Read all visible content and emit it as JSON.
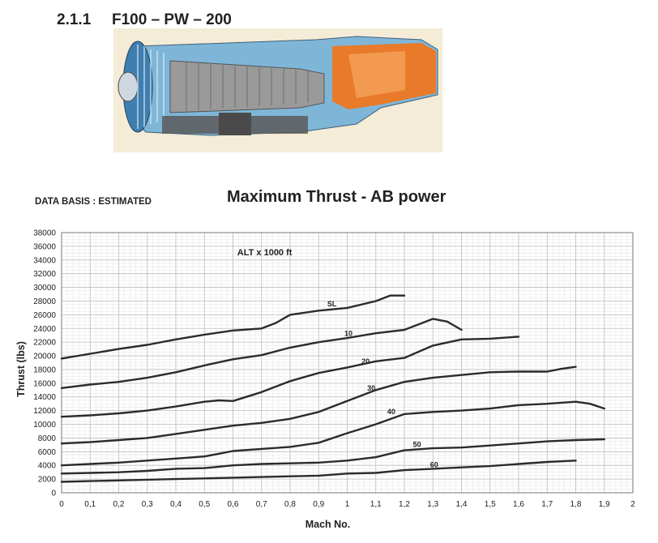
{
  "section": {
    "number": "2.1.1",
    "title": "F100 – PW – 200"
  },
  "figure": {
    "name": "engine-cutaway",
    "colors": {
      "casing": "#7fb6d8",
      "fan": "#3f7fb0",
      "core": "#9a9a9a",
      "exhaust": "#e87a2a",
      "bg": "#f4ecd6"
    }
  },
  "data_basis": "DATA BASIS : ESTIMATED",
  "chart_data": {
    "type": "line",
    "title": "Maximum Thrust - AB power",
    "xlabel": "Mach No.",
    "ylabel": "Thrust (lbs)",
    "annotation": "ALT x 1000 ft",
    "xlim": [
      0,
      2
    ],
    "ylim": [
      0,
      38000
    ],
    "xticks": [
      "0",
      "0,1",
      "0,2",
      "0,3",
      "0,4",
      "0,5",
      "0,6",
      "0,7",
      "0,8",
      "0,9",
      "1",
      "1,1",
      "1,2",
      "1,3",
      "1,4",
      "1,5",
      "1,6",
      "1,7",
      "1,8",
      "1,9",
      "2"
    ],
    "yticks": [
      "0",
      "2000",
      "4000",
      "6000",
      "8000",
      "10000",
      "12000",
      "14000",
      "16000",
      "18000",
      "20000",
      "22000",
      "24000",
      "26000",
      "28000",
      "30000",
      "32000",
      "34000",
      "36000",
      "38000"
    ],
    "grid": true,
    "line_color": "#2b2b2b",
    "series": [
      {
        "name": "SL",
        "label_at": [
          0.93,
          27200
        ],
        "x": [
          0,
          0.1,
          0.2,
          0.3,
          0.4,
          0.5,
          0.6,
          0.7,
          0.75,
          0.8,
          0.9,
          1.0,
          1.1,
          1.15,
          1.2
        ],
        "y": [
          19600,
          20300,
          21000,
          21600,
          22400,
          23100,
          23700,
          24000,
          24800,
          26000,
          26600,
          27000,
          28000,
          28800,
          28800
        ]
      },
      {
        "name": "10",
        "label_at": [
          0.99,
          22900
        ],
        "x": [
          0,
          0.1,
          0.2,
          0.3,
          0.4,
          0.5,
          0.6,
          0.7,
          0.8,
          0.9,
          1.0,
          1.1,
          1.2,
          1.25,
          1.3,
          1.35,
          1.4
        ],
        "y": [
          15300,
          15800,
          16200,
          16800,
          17600,
          18600,
          19500,
          20100,
          21200,
          22000,
          22600,
          23300,
          23800,
          24600,
          25400,
          25000,
          23800
        ]
      },
      {
        "name": "20",
        "label_at": [
          1.05,
          18800
        ],
        "x": [
          0,
          0.1,
          0.2,
          0.3,
          0.4,
          0.5,
          0.55,
          0.6,
          0.7,
          0.8,
          0.9,
          1.0,
          1.1,
          1.2,
          1.25,
          1.3,
          1.4,
          1.5,
          1.6
        ],
        "y": [
          11100,
          11300,
          11600,
          12000,
          12600,
          13300,
          13500,
          13400,
          14700,
          16300,
          17500,
          18300,
          19200,
          19700,
          20600,
          21500,
          22400,
          22500,
          22800
        ]
      },
      {
        "name": "30",
        "label_at": [
          1.07,
          14900
        ],
        "x": [
          0,
          0.1,
          0.2,
          0.3,
          0.4,
          0.5,
          0.6,
          0.7,
          0.8,
          0.9,
          1.0,
          1.1,
          1.2,
          1.3,
          1.4,
          1.5,
          1.6,
          1.7,
          1.75,
          1.8
        ],
        "y": [
          7200,
          7400,
          7700,
          8000,
          8600,
          9200,
          9800,
          10200,
          10800,
          11800,
          13400,
          15000,
          16200,
          16800,
          17200,
          17600,
          17700,
          17700,
          18100,
          18400
        ]
      },
      {
        "name": "40",
        "label_at": [
          1.14,
          11500
        ],
        "x": [
          0,
          0.1,
          0.2,
          0.3,
          0.4,
          0.5,
          0.55,
          0.6,
          0.7,
          0.8,
          0.9,
          1.0,
          1.1,
          1.2,
          1.3,
          1.4,
          1.5,
          1.6,
          1.7,
          1.8,
          1.85,
          1.9
        ],
        "y": [
          4000,
          4200,
          4400,
          4700,
          5000,
          5300,
          5700,
          6100,
          6400,
          6700,
          7300,
          8700,
          10000,
          11500,
          11800,
          12000,
          12300,
          12800,
          13000,
          13300,
          13000,
          12300
        ]
      },
      {
        "name": "50",
        "label_at": [
          1.23,
          6700
        ],
        "x": [
          0,
          0.1,
          0.2,
          0.3,
          0.4,
          0.5,
          0.6,
          0.7,
          0.8,
          0.9,
          1.0,
          1.1,
          1.2,
          1.3,
          1.4,
          1.5,
          1.6,
          1.7,
          1.8,
          1.9
        ],
        "y": [
          2800,
          2900,
          3000,
          3200,
          3500,
          3600,
          4000,
          4200,
          4300,
          4400,
          4700,
          5200,
          6200,
          6500,
          6600,
          6900,
          7200,
          7500,
          7700,
          7800
        ]
      },
      {
        "name": "60",
        "label_at": [
          1.29,
          3700
        ],
        "x": [
          0,
          0.1,
          0.2,
          0.3,
          0.4,
          0.5,
          0.6,
          0.7,
          0.8,
          0.9,
          1.0,
          1.1,
          1.2,
          1.3,
          1.4,
          1.5,
          1.6,
          1.7,
          1.8
        ],
        "y": [
          1600,
          1700,
          1800,
          1900,
          2000,
          2100,
          2200,
          2300,
          2400,
          2500,
          2800,
          2900,
          3300,
          3500,
          3700,
          3900,
          4200,
          4500,
          4700
        ]
      }
    ]
  }
}
